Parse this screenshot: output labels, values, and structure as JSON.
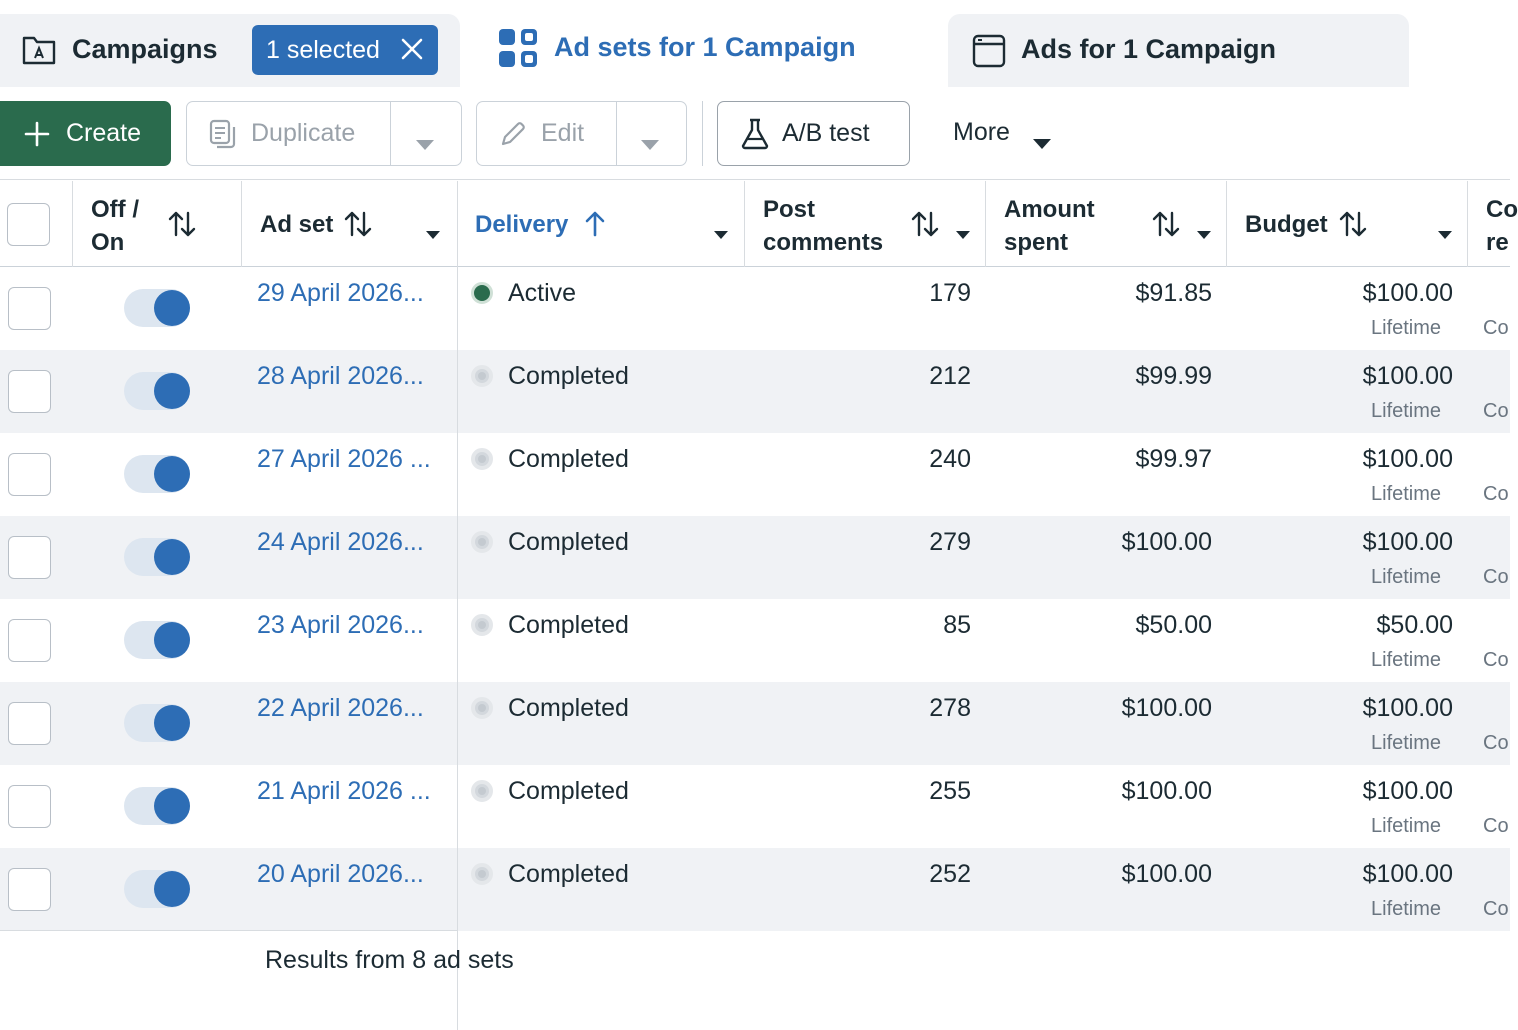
{
  "tabs": {
    "campaigns": "Campaigns",
    "selected": "1 selected",
    "adsets": "Ad sets for 1 Campaign",
    "ads": "Ads for 1 Campaign"
  },
  "toolbar": {
    "create": "Create",
    "duplicate": "Duplicate",
    "edit": "Edit",
    "ab_test": "A/B test",
    "more": "More"
  },
  "columns": {
    "toggle": [
      "Off /",
      "On"
    ],
    "adset": "Ad set",
    "delivery": "Delivery",
    "post_comments": [
      "Post",
      "comments"
    ],
    "amount_spent": [
      "Amount",
      "spent"
    ],
    "budget": "Budget",
    "next_partial": [
      "Co",
      "re"
    ]
  },
  "rows": [
    {
      "name": "29 April 2026...",
      "status": "Active",
      "comments": "179",
      "spent": "$91.85",
      "budget": "$100.00",
      "budget_type": "Lifetime",
      "next": "Co"
    },
    {
      "name": "28 April 2026...",
      "status": "Completed",
      "comments": "212",
      "spent": "$99.99",
      "budget": "$100.00",
      "budget_type": "Lifetime",
      "next": "Co"
    },
    {
      "name": "27 April 2026 ...",
      "status": "Completed",
      "comments": "240",
      "spent": "$99.97",
      "budget": "$100.00",
      "budget_type": "Lifetime",
      "next": "Co"
    },
    {
      "name": "24 April 2026...",
      "status": "Completed",
      "comments": "279",
      "spent": "$100.00",
      "budget": "$100.00",
      "budget_type": "Lifetime",
      "next": "Co"
    },
    {
      "name": "23 April 2026...",
      "status": "Completed",
      "comments": "85",
      "spent": "$50.00",
      "budget": "$50.00",
      "budget_type": "Lifetime",
      "next": "Co"
    },
    {
      "name": "22 April 2026...",
      "status": "Completed",
      "comments": "278",
      "spent": "$100.00",
      "budget": "$100.00",
      "budget_type": "Lifetime",
      "next": "Co"
    },
    {
      "name": "21 April 2026 ...",
      "status": "Completed",
      "comments": "255",
      "spent": "$100.00",
      "budget": "$100.00",
      "budget_type": "Lifetime",
      "next": "Co"
    },
    {
      "name": "20 April 2026...",
      "status": "Completed",
      "comments": "252",
      "spent": "$100.00",
      "budget": "$100.00",
      "budget_type": "Lifetime",
      "next": "Co"
    }
  ],
  "footer": "Results from 8 ad sets",
  "colors": {
    "accent": "#2d6db5",
    "create_green": "#2a6b4d",
    "active_dot": "#2a6b4d",
    "row_alt": "#f0f2f5"
  }
}
